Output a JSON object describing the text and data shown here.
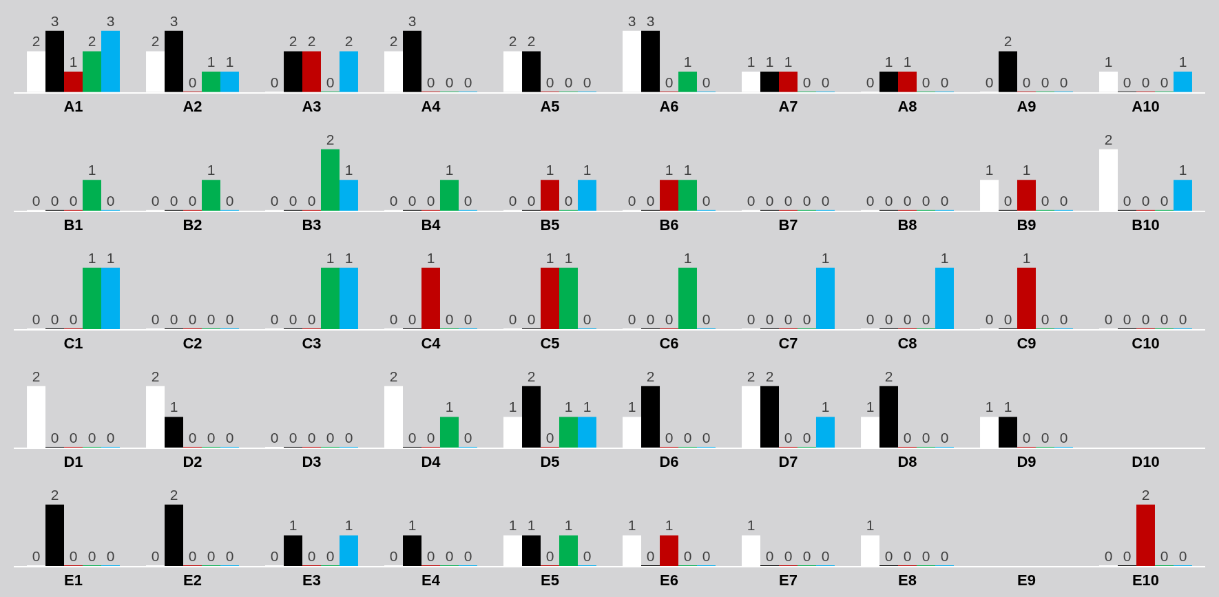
{
  "chart_data": [
    {
      "type": "bar",
      "categories": [
        "A1",
        "A2",
        "A3",
        "A4",
        "A5",
        "A6",
        "A7",
        "A8",
        "A9",
        "A10"
      ],
      "data_labels": true,
      "tick_labels": "x",
      "series": [
        {
          "color": "#ffffff",
          "values": [
            2,
            2,
            0,
            2,
            2,
            3,
            1,
            0,
            0,
            1
          ]
        },
        {
          "color": "#000000",
          "values": [
            3,
            3,
            2,
            3,
            2,
            3,
            1,
            1,
            2,
            0
          ]
        },
        {
          "color": "#c00000",
          "values": [
            1,
            0,
            2,
            0,
            0,
            0,
            1,
            1,
            0,
            0
          ]
        },
        {
          "color": "#00b050",
          "values": [
            2,
            1,
            0,
            0,
            0,
            1,
            0,
            0,
            0,
            0
          ]
        },
        {
          "color": "#00b0f0",
          "values": [
            3,
            1,
            2,
            0,
            0,
            0,
            0,
            0,
            0,
            1
          ]
        }
      ]
    },
    {
      "type": "bar",
      "categories": [
        "B1",
        "B2",
        "B3",
        "B4",
        "B5",
        "B6",
        "B7",
        "B8",
        "B9",
        "B10"
      ],
      "data_labels": true,
      "tick_labels": "x",
      "series": [
        {
          "color": "#ffffff",
          "values": [
            0,
            0,
            0,
            0,
            0,
            0,
            0,
            0,
            1,
            2
          ]
        },
        {
          "color": "#000000",
          "values": [
            0,
            0,
            0,
            0,
            0,
            0,
            0,
            0,
            0,
            0
          ]
        },
        {
          "color": "#c00000",
          "values": [
            0,
            0,
            0,
            0,
            1,
            1,
            0,
            0,
            1,
            0
          ]
        },
        {
          "color": "#00b050",
          "values": [
            1,
            1,
            2,
            1,
            0,
            1,
            0,
            0,
            0,
            0
          ]
        },
        {
          "color": "#00b0f0",
          "values": [
            0,
            0,
            1,
            0,
            1,
            0,
            0,
            0,
            0,
            1
          ]
        }
      ]
    },
    {
      "type": "bar",
      "categories": [
        "C1",
        "C2",
        "C3",
        "C4",
        "C5",
        "C6",
        "C7",
        "C8",
        "C9",
        "C10"
      ],
      "data_labels": true,
      "tick_labels": "x",
      "series": [
        {
          "color": "#ffffff",
          "values": [
            0,
            0,
            0,
            0,
            0,
            0,
            0,
            0,
            0,
            0
          ]
        },
        {
          "color": "#000000",
          "values": [
            0,
            0,
            0,
            0,
            0,
            0,
            0,
            0,
            0,
            0
          ]
        },
        {
          "color": "#c00000",
          "values": [
            0,
            0,
            0,
            1,
            1,
            0,
            0,
            0,
            1,
            0
          ]
        },
        {
          "color": "#00b050",
          "values": [
            1,
            0,
            1,
            0,
            1,
            1,
            0,
            0,
            0,
            0
          ]
        },
        {
          "color": "#00b0f0",
          "values": [
            1,
            0,
            1,
            0,
            0,
            0,
            1,
            1,
            0,
            0
          ]
        }
      ]
    },
    {
      "type": "bar",
      "categories": [
        "D1",
        "D2",
        "D3",
        "D4",
        "D5",
        "D6",
        "D7",
        "D8",
        "D9",
        "D10"
      ],
      "data_labels": true,
      "tick_labels": "x",
      "series": [
        {
          "color": "#ffffff",
          "values": [
            2,
            2,
            0,
            2,
            1,
            1,
            2,
            1,
            1,
            null
          ]
        },
        {
          "color": "#000000",
          "values": [
            0,
            1,
            0,
            0,
            2,
            2,
            2,
            2,
            1,
            null
          ]
        },
        {
          "color": "#c00000",
          "values": [
            0,
            0,
            0,
            0,
            0,
            0,
            0,
            0,
            0,
            null
          ]
        },
        {
          "color": "#00b050",
          "values": [
            0,
            0,
            0,
            1,
            1,
            0,
            0,
            0,
            0,
            null
          ]
        },
        {
          "color": "#00b0f0",
          "values": [
            0,
            0,
            0,
            0,
            1,
            0,
            1,
            0,
            0,
            null
          ]
        }
      ]
    },
    {
      "type": "bar",
      "categories": [
        "E1",
        "E2",
        "E3",
        "E4",
        "E5",
        "E6",
        "E7",
        "E8",
        "E9",
        "E10"
      ],
      "data_labels": true,
      "tick_labels": "x",
      "series": [
        {
          "color": "#ffffff",
          "values": [
            0,
            0,
            0,
            0,
            1,
            1,
            1,
            1,
            null,
            0
          ]
        },
        {
          "color": "#000000",
          "values": [
            2,
            2,
            1,
            1,
            1,
            0,
            0,
            0,
            null,
            0
          ]
        },
        {
          "color": "#c00000",
          "values": [
            0,
            0,
            0,
            0,
            0,
            1,
            0,
            0,
            null,
            2
          ]
        },
        {
          "color": "#00b050",
          "values": [
            0,
            0,
            0,
            0,
            1,
            0,
            0,
            0,
            null,
            0
          ]
        },
        {
          "color": "#00b0f0",
          "values": [
            0,
            0,
            1,
            0,
            0,
            0,
            0,
            0,
            null,
            0
          ]
        }
      ]
    }
  ]
}
